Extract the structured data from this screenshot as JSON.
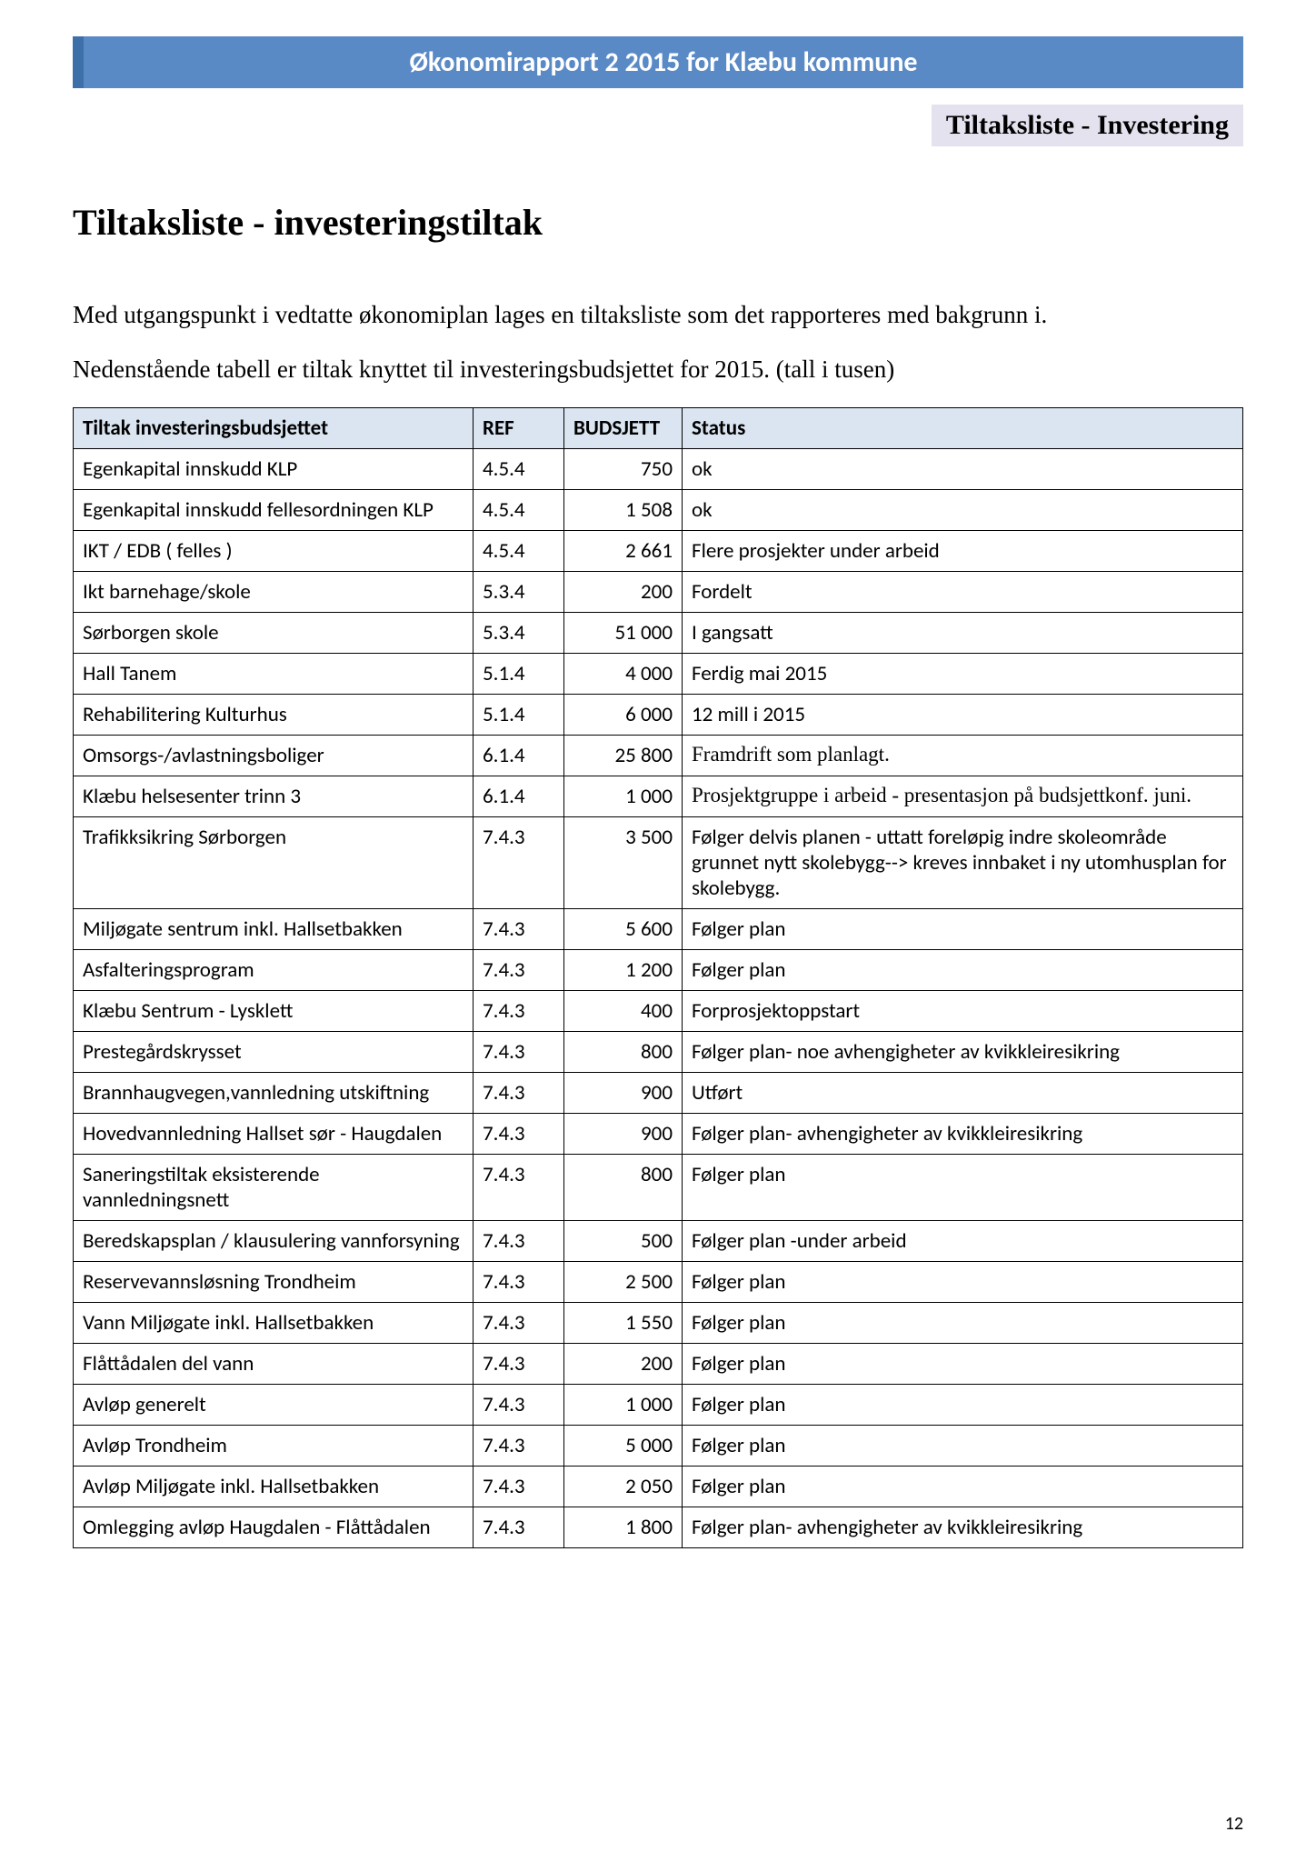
{
  "banner_title": "Økonomirapport 2 2015 for Klæbu kommune",
  "subheader": "Tiltaksliste - Investering",
  "page_title": "Tiltaksliste - investeringstiltak",
  "intro_p1": "Med utgangspunkt i vedtatte økonomiplan lages en tiltaksliste som det rapporteres med bakgrunn i.",
  "intro_p2": "Nedenstående tabell er tiltak knyttet til investeringsbudsjettet for 2015. (tall i tusen)",
  "page_number": "12",
  "colors": {
    "banner_bg": "#5a8ac6",
    "banner_border": "#3d6fa8",
    "banner_text": "#ffffff",
    "subbox_bg": "#e4e2ee",
    "table_header_bg": "#dbe5f1",
    "table_border": "#000000",
    "page_bg": "#ffffff",
    "text": "#000000"
  },
  "table": {
    "columns": [
      "Tiltak investeringsbudsjettet",
      "REF",
      "BUDSJETT",
      "Status"
    ],
    "rows": [
      {
        "tiltak": "Egenkapital innskudd KLP",
        "ref": "4.5.4",
        "budsjett": "750",
        "status": "ok",
        "serif": false
      },
      {
        "tiltak": "Egenkapital innskudd fellesordningen KLP",
        "ref": "4.5.4",
        "budsjett": "1 508",
        "status": "ok",
        "serif": false
      },
      {
        "tiltak": "IKT / EDB ( felles )",
        "ref": "4.5.4",
        "budsjett": "2 661",
        "status": "Flere prosjekter under arbeid",
        "serif": false
      },
      {
        "tiltak": "Ikt barnehage/skole",
        "ref": "5.3.4",
        "budsjett": "200",
        "status": "Fordelt",
        "serif": false
      },
      {
        "tiltak": "Sørborgen skole",
        "ref": "5.3.4",
        "budsjett": "51 000",
        "status": "I gangsatt",
        "serif": false
      },
      {
        "tiltak": "Hall Tanem",
        "ref": "5.1.4",
        "budsjett": "4 000",
        "status": "Ferdig mai 2015",
        "serif": false
      },
      {
        "tiltak": "Rehabilitering Kulturhus",
        "ref": "5.1.4",
        "budsjett": "6 000",
        "status": "12 mill i 2015",
        "serif": false
      },
      {
        "tiltak": "Omsorgs-/avlastningsboliger",
        "ref": "6.1.4",
        "budsjett": "25 800",
        "status": "Framdrift som planlagt.",
        "serif": true
      },
      {
        "tiltak": "Klæbu helsesenter trinn 3",
        "ref": "6.1.4",
        "budsjett": "1 000",
        "status": "Prosjektgruppe i arbeid - presentasjon på budsjettkonf. juni.",
        "serif": true
      },
      {
        "tiltak": "Trafikksikring Sørborgen",
        "ref": "7.4.3",
        "budsjett": "3 500",
        "status": "Følger delvis planen - uttatt foreløpig indre skoleområde grunnet nytt skolebygg--> kreves innbaket i ny utomhusplan for skolebygg.",
        "serif": false
      },
      {
        "tiltak": "Miljøgate sentrum inkl. Hallsetbakken",
        "ref": "7.4.3",
        "budsjett": "5 600",
        "status": "Følger plan",
        "serif": false
      },
      {
        "tiltak": "Asfalteringsprogram",
        "ref": "7.4.3",
        "budsjett": "1 200",
        "status": "Følger plan",
        "serif": false
      },
      {
        "tiltak": "Klæbu Sentrum - Lysklett",
        "ref": "7.4.3",
        "budsjett": "400",
        "status": "Forprosjektoppstart",
        "serif": false
      },
      {
        "tiltak": "Prestegårdskrysset",
        "ref": "7.4.3",
        "budsjett": "800",
        "status": "Følger plan- noe avhengigheter av kvikkleiresikring",
        "serif": false
      },
      {
        "tiltak": "Brannhaugvegen,vannledning utskiftning",
        "ref": "7.4.3",
        "budsjett": "900",
        "status": "Utført",
        "serif": false
      },
      {
        "tiltak": "Hovedvannledning Hallset sør - Haugdalen",
        "ref": "7.4.3",
        "budsjett": "900",
        "status": "Følger plan- avhengigheter av kvikkleiresikring",
        "serif": false
      },
      {
        "tiltak": "Saneringstiltak eksisterende vannledningsnett",
        "ref": "7.4.3",
        "budsjett": "800",
        "status": "Følger plan",
        "serif": false
      },
      {
        "tiltak": "Beredskapsplan / klausulering vannforsyning",
        "ref": "7.4.3",
        "budsjett": "500",
        "status": "Følger plan -under arbeid",
        "serif": false
      },
      {
        "tiltak": "Reservevannsløsning Trondheim",
        "ref": "7.4.3",
        "budsjett": "2 500",
        "status": "Følger plan",
        "serif": false
      },
      {
        "tiltak": "Vann Miljøgate inkl. Hallsetbakken",
        "ref": "7.4.3",
        "budsjett": "1 550",
        "status": "Følger plan",
        "serif": false
      },
      {
        "tiltak": "Flåttådalen del vann",
        "ref": "7.4.3",
        "budsjett": "200",
        "status": "Følger plan",
        "serif": false
      },
      {
        "tiltak": "Avløp generelt",
        "ref": "7.4.3",
        "budsjett": "1 000",
        "status": "Følger plan",
        "serif": false
      },
      {
        "tiltak": "Avløp Trondheim",
        "ref": "7.4.3",
        "budsjett": "5 000",
        "status": "Følger plan",
        "serif": false
      },
      {
        "tiltak": "Avløp Miljøgate inkl. Hallsetbakken",
        "ref": "7.4.3",
        "budsjett": "2 050",
        "status": "Følger plan",
        "serif": false
      },
      {
        "tiltak": "Omlegging avløp Haugdalen - Flåttådalen",
        "ref": "7.4.3",
        "budsjett": "1 800",
        "status": "Følger plan- avhengigheter av kvikkleiresikring",
        "serif": false
      }
    ]
  }
}
